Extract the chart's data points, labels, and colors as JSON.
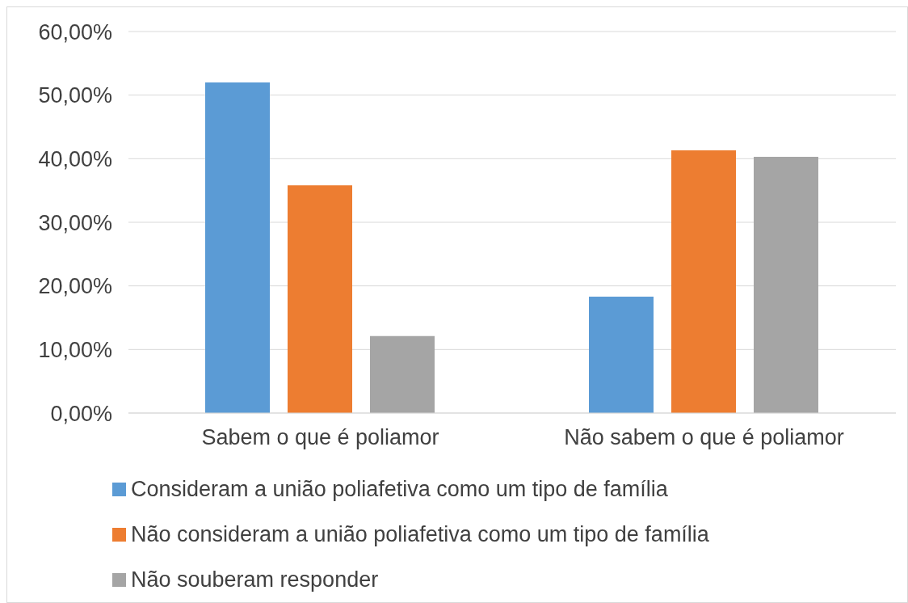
{
  "chart_data": {
    "type": "bar",
    "categories": [
      "Sabem o que é poliamor",
      "Não sabem o que é poliamor"
    ],
    "series": [
      {
        "name": "Consideram a união poliafetiva como um tipo de família",
        "color": "#5b9bd5",
        "values": [
          52.0,
          18.3
        ]
      },
      {
        "name": "Não consideram a união poliafetiva como um tipo de família",
        "color": "#ed7d31",
        "values": [
          35.8,
          41.3
        ]
      },
      {
        "name": "Não souberam responder",
        "color": "#a5a5a5",
        "values": [
          12.1,
          40.3
        ]
      }
    ],
    "ylim": [
      0,
      60
    ],
    "yticks": [
      {
        "value": 0,
        "label": "0,00%"
      },
      {
        "value": 10,
        "label": "10,00%"
      },
      {
        "value": 20,
        "label": "20,00%"
      },
      {
        "value": 30,
        "label": "30,00%"
      },
      {
        "value": 40,
        "label": "40,00%"
      },
      {
        "value": 50,
        "label": "50,00%"
      },
      {
        "value": 60,
        "label": "60,00%"
      }
    ],
    "grid": "y",
    "legend": "bottom"
  }
}
